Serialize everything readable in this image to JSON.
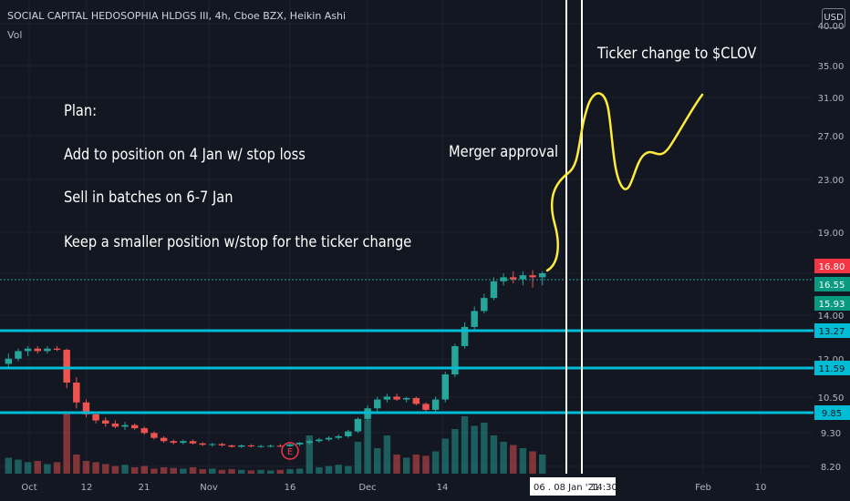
{
  "header": {
    "symbol_line": "SOCIAL CAPITAL HEDOSOPHIA HLDGS III, 4h, Cboe BZX, Heikin Ashi",
    "indicator": "Vol",
    "currency_button": "USD"
  },
  "annotations": {
    "plan_title": "Plan:",
    "plan_item_1": "Add to position on 4 Jan w/ stop loss",
    "plan_item_2": "Sell in batches on 6-7 Jan",
    "plan_item_3": "Keep a smaller position w/stop for the ticker change",
    "merger": "Merger approval",
    "ticker_change": "Ticker change to $CLOV"
  },
  "price_axis": {
    "ticks": [
      "35.00",
      "31.00",
      "27.00",
      "23.00",
      "19.00",
      "14.00",
      "12.00",
      "10.50",
      "9.30",
      "8.20"
    ],
    "top_partial": "40.00"
  },
  "price_labels": [
    {
      "text": "16.80",
      "color": "#f23645"
    },
    {
      "text": "16.55",
      "color": "#089981"
    },
    {
      "text": "15.93",
      "color": "#089981"
    },
    {
      "text": "13.27",
      "color": "#00bcd4"
    },
    {
      "text": "11.59",
      "color": "#00bcd4"
    },
    {
      "text": "9.85",
      "color": "#00bcd4"
    }
  ],
  "time_axis": {
    "ticks": [
      "Oct",
      "12",
      "21",
      "Nov",
      "16",
      "Dec",
      "14",
      "Feb",
      "10"
    ],
    "cursor_label": "06 . 08 Jan '21",
    "cursor_time": "14:30"
  },
  "event_badge": "E",
  "chart_data": {
    "type": "candlestick",
    "ticker": "SOCIAL CAPITAL HEDOSOPHIA HLDGS III",
    "interval": "4h",
    "exchange": "Cboe BZX",
    "style": "Heikin Ashi",
    "scale": "log",
    "horizontal_levels": [
      13.27,
      11.59,
      9.85
    ],
    "last_price": 16.8,
    "price_marks": [
      16.55,
      15.93
    ],
    "forecast_path": [
      16.8,
      19.0,
      23.0,
      25.5,
      31.0,
      27.0,
      23.0,
      25.0,
      24.5,
      27.0,
      31.5
    ],
    "candles": [
      [
        12.8,
        13.2,
        12.6,
        13.0
      ],
      [
        13.0,
        13.4,
        12.9,
        13.3
      ],
      [
        13.3,
        13.5,
        13.1,
        13.4
      ],
      [
        13.4,
        13.5,
        13.2,
        13.3
      ],
      [
        13.3,
        13.5,
        13.2,
        13.4
      ],
      [
        13.4,
        13.5,
        13.3,
        13.35
      ],
      [
        13.35,
        13.4,
        11.9,
        12.1
      ],
      [
        12.1,
        12.3,
        11.2,
        11.4
      ],
      [
        11.4,
        11.5,
        10.9,
        11.0
      ],
      [
        11.0,
        11.1,
        10.7,
        10.8
      ],
      [
        10.8,
        10.9,
        10.6,
        10.7
      ],
      [
        10.7,
        10.8,
        10.55,
        10.6
      ],
      [
        10.6,
        10.75,
        10.5,
        10.65
      ],
      [
        10.65,
        10.7,
        10.5,
        10.55
      ],
      [
        10.55,
        10.6,
        10.35,
        10.4
      ],
      [
        10.4,
        10.45,
        10.2,
        10.25
      ],
      [
        10.25,
        10.3,
        10.1,
        10.15
      ],
      [
        10.15,
        10.2,
        10.05,
        10.1
      ],
      [
        10.1,
        10.2,
        10.05,
        10.15
      ],
      [
        10.15,
        10.2,
        10.05,
        10.08
      ],
      [
        10.08,
        10.12,
        10.0,
        10.04
      ],
      [
        10.04,
        10.1,
        9.98,
        10.06
      ],
      [
        10.06,
        10.1,
        9.98,
        10.02
      ],
      [
        10.02,
        10.05,
        9.95,
        9.98
      ],
      [
        9.98,
        10.05,
        9.95,
        10.02
      ],
      [
        10.02,
        10.06,
        9.96,
        9.99
      ],
      [
        9.99,
        10.04,
        9.95,
        10.0
      ],
      [
        10.0,
        10.05,
        9.96,
        10.01
      ],
      [
        10.01,
        10.06,
        9.97,
        10.0
      ],
      [
        10.0,
        10.08,
        9.98,
        10.05
      ],
      [
        10.05,
        10.12,
        10.0,
        10.1
      ],
      [
        10.1,
        10.2,
        10.05,
        10.15
      ],
      [
        10.15,
        10.25,
        10.1,
        10.2
      ],
      [
        10.2,
        10.3,
        10.15,
        10.25
      ],
      [
        10.25,
        10.35,
        10.2,
        10.3
      ],
      [
        10.3,
        10.5,
        10.25,
        10.45
      ],
      [
        10.45,
        10.9,
        10.4,
        10.85
      ],
      [
        10.85,
        11.3,
        10.8,
        11.2
      ],
      [
        11.2,
        11.6,
        11.1,
        11.5
      ],
      [
        11.5,
        11.7,
        11.4,
        11.6
      ],
      [
        11.6,
        11.7,
        11.45,
        11.5
      ],
      [
        11.5,
        11.6,
        11.4,
        11.55
      ],
      [
        11.55,
        11.6,
        11.3,
        11.35
      ],
      [
        11.35,
        11.4,
        11.1,
        11.15
      ],
      [
        11.15,
        11.6,
        11.1,
        11.5
      ],
      [
        11.5,
        12.5,
        11.4,
        12.4
      ],
      [
        12.4,
        13.6,
        12.3,
        13.5
      ],
      [
        13.5,
        14.5,
        13.4,
        14.3
      ],
      [
        14.3,
        15.2,
        14.2,
        15.0
      ],
      [
        15.0,
        15.8,
        14.9,
        15.6
      ],
      [
        15.6,
        16.6,
        15.5,
        16.4
      ],
      [
        16.4,
        16.8,
        16.2,
        16.6
      ],
      [
        16.6,
        16.9,
        16.3,
        16.5
      ],
      [
        16.5,
        16.9,
        16.2,
        16.7
      ],
      [
        16.7,
        16.95,
        16.1,
        16.6
      ],
      [
        16.6,
        16.9,
        16.2,
        16.8
      ]
    ],
    "volumes": [
      0.25,
      0.22,
      0.18,
      0.2,
      0.15,
      0.18,
      0.95,
      0.3,
      0.2,
      0.18,
      0.15,
      0.12,
      0.14,
      0.1,
      0.12,
      0.08,
      0.1,
      0.09,
      0.08,
      0.1,
      0.07,
      0.08,
      0.06,
      0.07,
      0.06,
      0.05,
      0.06,
      0.05,
      0.06,
      0.07,
      0.08,
      0.6,
      0.1,
      0.12,
      0.14,
      0.12,
      0.5,
      0.85,
      0.4,
      0.6,
      0.3,
      0.25,
      0.3,
      0.28,
      0.35,
      0.55,
      0.7,
      0.9,
      0.75,
      0.8,
      0.6,
      0.5,
      0.45,
      0.4,
      0.35,
      0.3
    ]
  }
}
